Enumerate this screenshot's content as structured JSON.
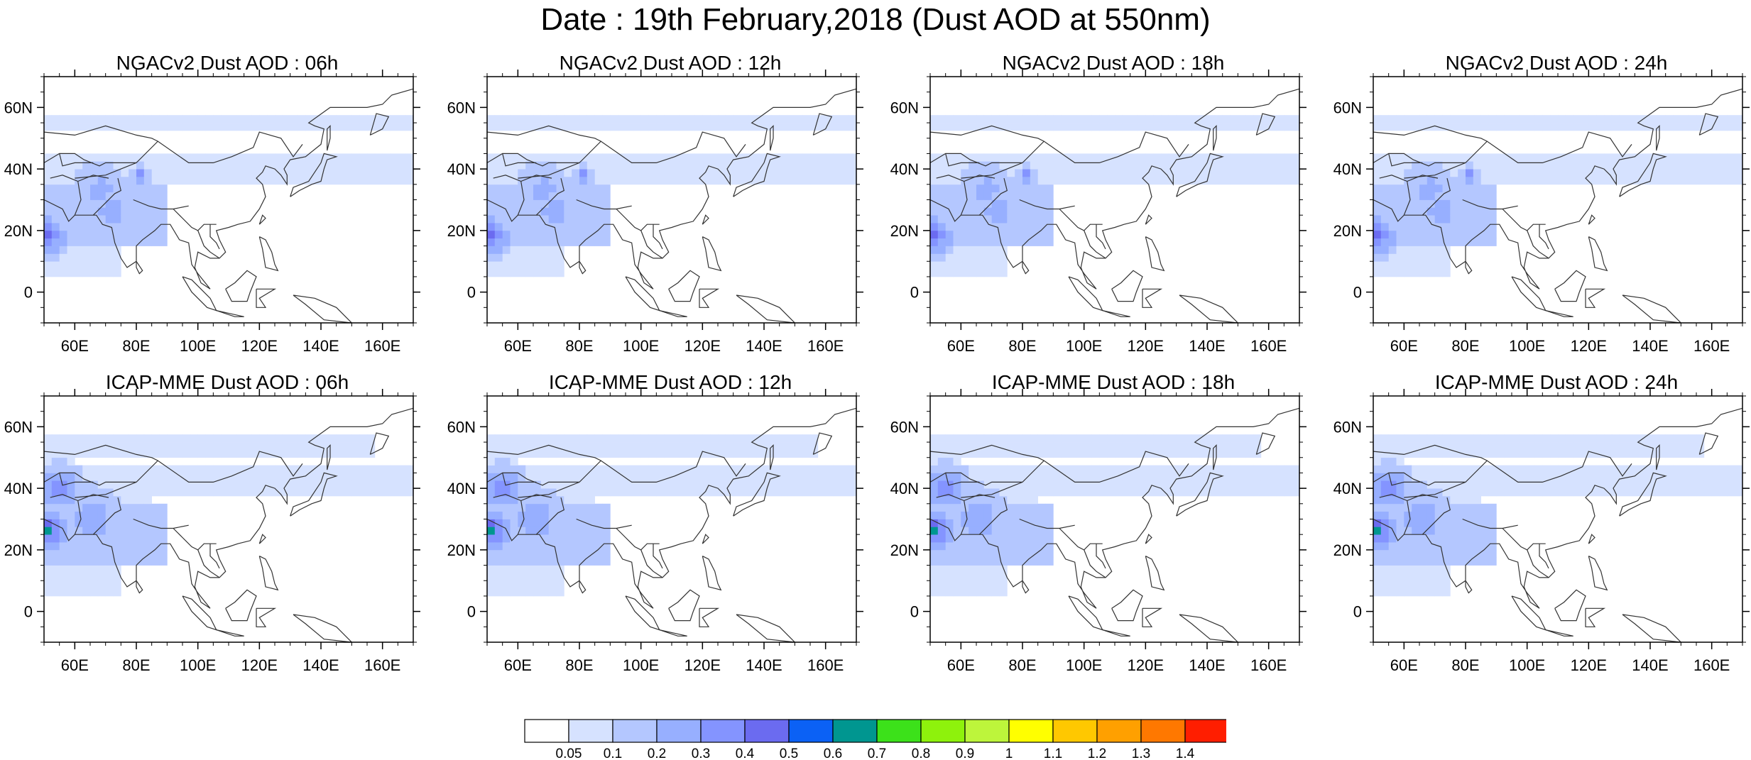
{
  "title": "Date : 19th February,2018 (Dust AOD at 550nm)",
  "map_extent": {
    "lon_min": 50,
    "lon_max": 170,
    "lat_min": -10,
    "lat_max": 70
  },
  "x_ticks": [
    "60E",
    "80E",
    "100E",
    "120E",
    "140E",
    "160E"
  ],
  "y_ticks": [
    "0",
    "20N",
    "40N",
    "60N"
  ],
  "panels": [
    {
      "title": "NGACv2 Dust AOD : 06h",
      "model": "NGACv2",
      "hour": "06h"
    },
    {
      "title": "NGACv2 Dust AOD : 12h",
      "model": "NGACv2",
      "hour": "12h"
    },
    {
      "title": "NGACv2 Dust AOD : 18h",
      "model": "NGACv2",
      "hour": "18h"
    },
    {
      "title": "NGACv2 Dust AOD : 24h",
      "model": "NGACv2",
      "hour": "24h"
    },
    {
      "title": "ICAP-MME Dust AOD : 06h",
      "model": "ICAP-MME",
      "hour": "06h"
    },
    {
      "title": "ICAP-MME Dust AOD : 12h",
      "model": "ICAP-MME",
      "hour": "12h"
    },
    {
      "title": "ICAP-MME Dust AOD : 18h",
      "model": "ICAP-MME",
      "hour": "18h"
    },
    {
      "title": "ICAP-MME Dust AOD : 24h",
      "model": "ICAP-MME",
      "hour": "24h"
    }
  ],
  "colorbar": {
    "labels": [
      "0.05",
      "0.1",
      "0.2",
      "0.3",
      "0.4",
      "0.5",
      "0.6",
      "0.7",
      "0.8",
      "0.9",
      "1",
      "1.1",
      "1.2",
      "1.3",
      "1.4"
    ],
    "colors": [
      "#ffffff",
      "#d6e2ff",
      "#b4c7ff",
      "#97afff",
      "#8494ff",
      "#6b6bf0",
      "#0b61f5",
      "#009690",
      "#3ce11a",
      "#8ef20c",
      "#bdf53b",
      "#ffff00",
      "#ffc800",
      "#ffa000",
      "#ff7800",
      "#ff1e00"
    ]
  },
  "colors": {
    "coastline": "#333333",
    "frame": "#000000"
  }
}
